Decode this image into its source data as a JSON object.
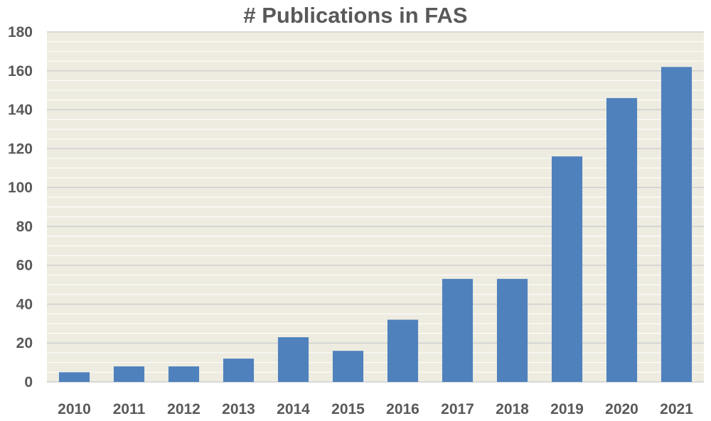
{
  "chart_data": {
    "type": "bar",
    "title": "# Publications in FAS",
    "xlabel": "",
    "ylabel": "",
    "categories": [
      "2010",
      "2011",
      "2012",
      "2013",
      "2014",
      "2015",
      "2016",
      "2017",
      "2018",
      "2019",
      "2020",
      "2021"
    ],
    "values": [
      5,
      8,
      8,
      12,
      23,
      16,
      32,
      53,
      53,
      116,
      146,
      162
    ],
    "ylim": [
      0,
      180
    ],
    "yticks": [
      0,
      20,
      40,
      60,
      80,
      100,
      120,
      140,
      160,
      180
    ],
    "grid": true,
    "legend": "none",
    "colors": {
      "bar": "#4F81BD",
      "plot_background": "#EEECE1",
      "gridline": "#D9D9D9",
      "text": "#595959"
    }
  }
}
